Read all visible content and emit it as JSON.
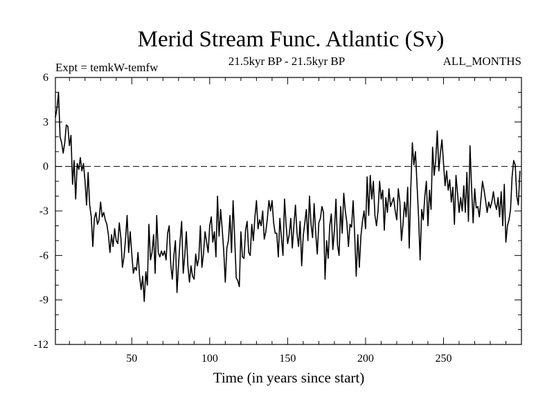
{
  "chart_data": {
    "type": "line",
    "title": "Merid Stream Func. Atlantic (Sv)",
    "subtitle_left": "Expt = temkW-temfw",
    "subtitle_center": "21.5kyr BP - 21.5kyr BP",
    "subtitle_right": "ALL_MONTHS",
    "xlabel": "Time (in years since start)",
    "ylabel": "",
    "xlim": [
      1,
      300
    ],
    "ylim": [
      -12,
      6
    ],
    "x_ticks": [
      50,
      100,
      150,
      200,
      250
    ],
    "y_ticks": [
      6,
      3,
      0,
      -3,
      -6,
      -9,
      -12
    ],
    "zero_line": 0,
    "series": [
      {
        "name": "Merid Stream Func. Atlantic",
        "x_start": 1,
        "x_step": 1,
        "values": [
          3.3,
          3.9,
          5.0,
          2.0,
          1.6,
          0.9,
          1.6,
          2.8,
          2.7,
          1.4,
          2.1,
          -1.2,
          0.4,
          -2.2,
          0.2,
          -0.2,
          0.6,
          -0.3,
          0.2,
          -1.0,
          -2.6,
          -0.4,
          -2.6,
          -3.4,
          -5.4,
          -3.5,
          -3.1,
          -3.9,
          -3.6,
          -2.4,
          -3.4,
          -3.1,
          -3.6,
          -3.9,
          -4.6,
          -5.8,
          -4.6,
          -5.4,
          -4.2,
          -5.0,
          -5.2,
          -3.8,
          -4.8,
          -6.8,
          -6.1,
          -4.9,
          -3.3,
          -5.8,
          -4.4,
          -5.9,
          -7.2,
          -6.8,
          -7.0,
          -5.8,
          -7.4,
          -8.3,
          -7.4,
          -9.1,
          -7.1,
          -8.0,
          -3.9,
          -6.3,
          -5.8,
          -4.6,
          -7.2,
          -3.3,
          -5.8,
          -6.1,
          -5.7,
          -6.0,
          -5.7,
          -6.3,
          -4.5,
          -4.0,
          -6.6,
          -7.6,
          -6.0,
          -5.0,
          -8.5,
          -6.6,
          -5.0,
          -3.7,
          -7.2,
          -6.0,
          -4.4,
          -6.7,
          -7.8,
          -6.7,
          -7.4,
          -7.6,
          -5.9,
          -6.7,
          -6.2,
          -4.0,
          -6.8,
          -5.9,
          -4.4,
          -5.1,
          -5.8,
          -4.0,
          -3.4,
          -5.1,
          -4.4,
          -6.1,
          -2.0,
          -4.7,
          -2.9,
          -4.2,
          -5.7,
          -7.8,
          -5.5,
          -5.0,
          -3.3,
          -5.8,
          -2.3,
          -4.8,
          -7.5,
          -7.7,
          -8.1,
          -4.4,
          -6.1,
          -6.2,
          -4.3,
          -3.7,
          -5.8,
          -6.0,
          -3.9,
          -5.0,
          -3.4,
          -2.3,
          -4.2,
          -3.6,
          -4.0,
          -3.0,
          -4.9,
          -4.4,
          -3.5,
          -2.3,
          -3.0,
          -2.3,
          -3.8,
          -4.5,
          -4.5,
          -6.1,
          -3.5,
          -4.8,
          -6.0,
          -2.2,
          -3.9,
          -5.2,
          -4.6,
          -3.5,
          -5.5,
          -4.0,
          -2.6,
          -4.5,
          -5.4,
          -3.7,
          -6.7,
          -4.7,
          -3.8,
          -2.9,
          -5.0,
          -2.0,
          -3.9,
          -4.8,
          -2.5,
          -4.5,
          -5.9,
          -3.8,
          -3.5,
          -2.7,
          -3.1,
          -7.6,
          -5.0,
          -6.2,
          -4.0,
          -3.2,
          -5.6,
          -4.3,
          -2.2,
          -5.3,
          -6.0,
          -2.7,
          -4.5,
          -1.8,
          -3.0,
          -3.8,
          -5.4,
          -3.9,
          -4.1,
          -2.3,
          -4.6,
          -7.4,
          -4.6,
          -6.8,
          -4.7,
          -3.7,
          -3.0,
          -4.2,
          -0.7,
          -3.3,
          -0.6,
          -2.2,
          -1.0,
          -3.3,
          -4.0,
          -3.0,
          -1.0,
          -2.2,
          -1.6,
          -4.3,
          -2.1,
          -3.1,
          -1.5,
          -2.7,
          -2.4,
          -2.1,
          -3.0,
          -3.6,
          -1.5,
          -2.4,
          -5.0,
          -3.9,
          -2.4,
          -3.4,
          -1.4,
          -5.5,
          -1.5,
          1.6,
          0.1,
          1.0,
          -1.2,
          -3.4,
          -6.3,
          -2.9,
          -3.6,
          -2.0,
          -1.0,
          -4.0,
          -1.6,
          -2.9,
          1.3,
          -0.6,
          0.4,
          2.4,
          -0.3,
          0.9,
          1.8,
          0.2,
          -1.3,
          -0.3,
          -1.6,
          -0.9,
          -2.4,
          -1.4,
          -3.9,
          -0.6,
          -1.8,
          -3.1,
          -2.1,
          -3.0,
          -1.3,
          -3.1,
          -0.4,
          -3.7,
          1.4,
          -1.4,
          -3.8,
          -1.5,
          -2.8,
          -2.7,
          -3.4,
          -2.2,
          -1.0,
          -1.6,
          -2.3,
          -3.1,
          -2.4,
          -2.8,
          -2.4,
          -1.7,
          -2.5,
          -2.9,
          -2.1,
          -3.4,
          -1.7,
          -4.0,
          -1.2,
          -5.1,
          -4.0,
          -3.6,
          -2.9,
          -0.7,
          0.4,
          0.1,
          -2.0,
          -2.6,
          -0.3
        ]
      }
    ]
  }
}
